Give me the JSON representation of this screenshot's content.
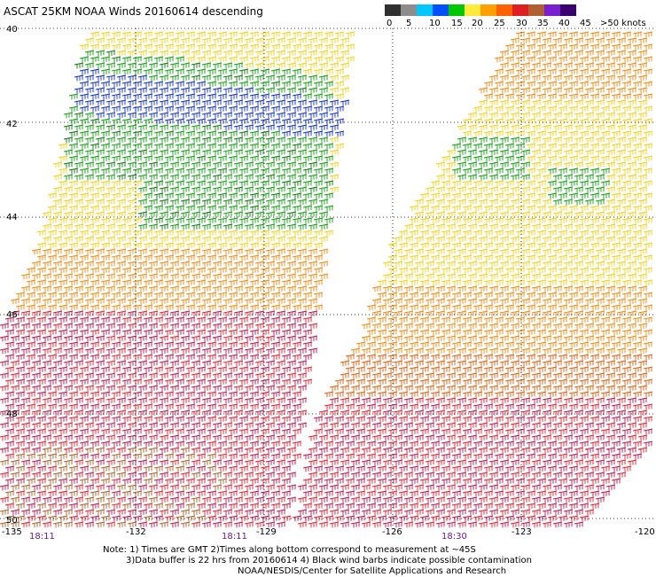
{
  "title": "ASCAT 25KM NOAA Winds 20160614 descending",
  "legend": {
    "labels": [
      "0",
      "5",
      "10",
      "15",
      "20",
      "25",
      "30",
      "35",
      "40",
      "45",
      ">50 knots"
    ],
    "colors": [
      "#303030",
      "#8c8c8c",
      "#00c8ff",
      "#0050ff",
      "#00c800",
      "#ffeb3c",
      "#ffa000",
      "#ff6000",
      "#e02020",
      "#b06030",
      "#7a1fd0",
      "#3a0070"
    ]
  },
  "latitude_labels": [
    "40",
    "42",
    "44",
    "46",
    "48",
    "50"
  ],
  "longitude_labels": [
    "-135",
    "-132",
    "-129",
    "-126",
    "-123",
    "-120"
  ],
  "time_labels": [
    "18:11",
    "18:11",
    "18:30"
  ],
  "notes": {
    "line1": "Note: 1) Times are GMT 2)Times along bottom correspond to measurement at ~45S",
    "line2": "3)Data buffer is 22 hrs from 20160614 4) Black wind barbs indicate possible contamination",
    "line3": "NOAA/NESDIS/Center for Satellite Applications and Research"
  },
  "colors": {
    "green": "#10a010",
    "dark_green": "#0a7a0a",
    "blue": "#1030d0",
    "yellow": "#f2d21a",
    "orange": "#f08a10",
    "dark_orange": "#e06010",
    "red": "#e82030",
    "crimson": "#c0184a",
    "brown": "#a8642c"
  }
}
